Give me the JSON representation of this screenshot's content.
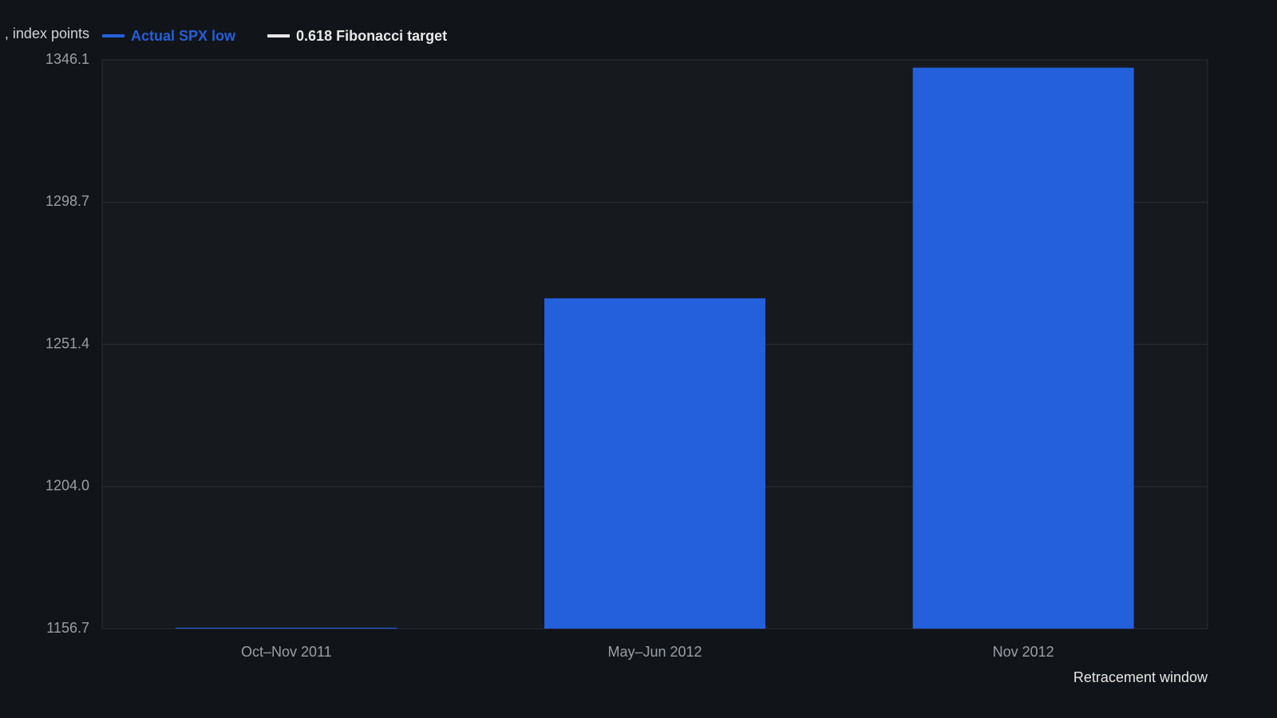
{
  "chart_data": {
    "type": "bar",
    "y_axis_label": ", index points",
    "x_axis_label": "Retracement window",
    "categories": [
      "Oct–Nov 2011",
      "May–Jun 2012",
      "Nov 2012"
    ],
    "series": [
      {
        "name": "Actual SPX low",
        "color": "#245fdc",
        "values": [
          1157,
          1266.7,
          1343.5
        ]
      },
      {
        "name": "0.618 Fibonacci target",
        "color": "#e8e8e8"
      }
    ],
    "ylim": [
      1156.7,
      1346.1
    ],
    "yticks": [
      1156.7,
      {
        "value": 1204.0,
        "label": "1204.0"
      },
      1251.4,
      1298.7,
      1346.1
    ],
    "grid": true
  }
}
